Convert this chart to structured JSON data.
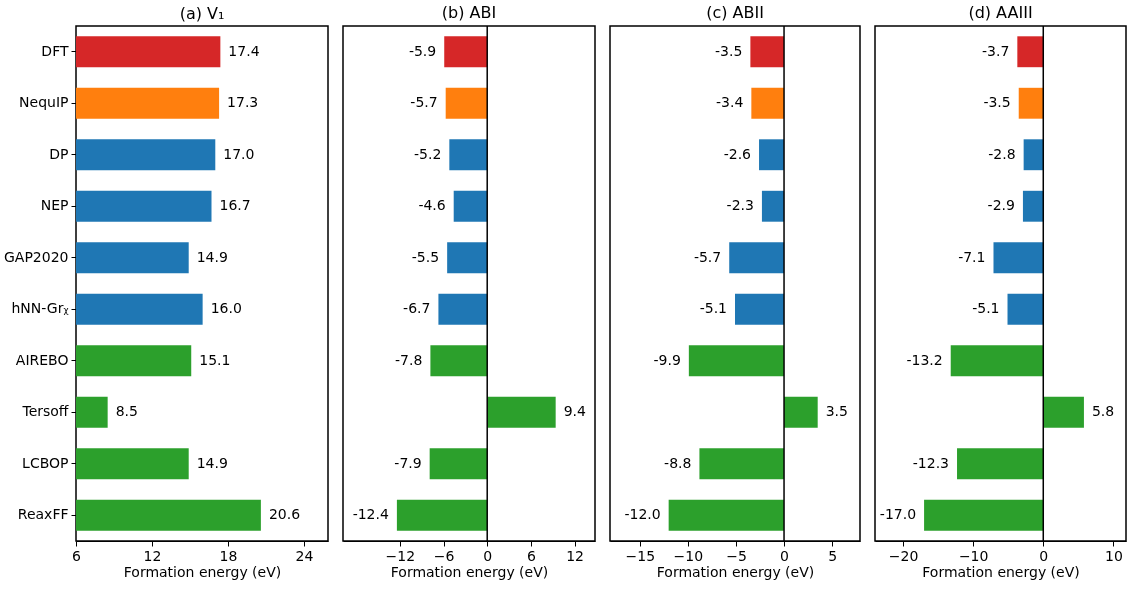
{
  "chart_data": [
    {
      "type": "bar",
      "orientation": "horizontal",
      "title": "(a) V₁",
      "xlabel": "Formation energy (eV)",
      "categories": [
        "DFT",
        "NequIP",
        "DP",
        "NEP",
        "GAP2020",
        "hNN-Grᵪ",
        "AIREBO",
        "Tersoff",
        "LCBOP",
        "ReaxFF"
      ],
      "values": [
        17.4,
        17.3,
        17.0,
        16.7,
        14.9,
        16.0,
        15.1,
        8.5,
        14.9,
        20.6
      ],
      "value_labels": [
        "17.4",
        "17.3",
        "17.0",
        "16.7",
        "14.9",
        "16.0",
        "15.1",
        "8.5",
        "14.9",
        "20.6"
      ],
      "colors": [
        "#d62728",
        "#ff7f0e",
        "#1f77b4",
        "#1f77b4",
        "#1f77b4",
        "#1f77b4",
        "#2ca02c",
        "#2ca02c",
        "#2ca02c",
        "#2ca02c"
      ],
      "xlim": [
        6,
        25.9
      ],
      "xticks": [
        6,
        12,
        18,
        24
      ],
      "grid": false
    },
    {
      "type": "bar",
      "orientation": "horizontal",
      "title": "(b) ABI",
      "xlabel": "Formation energy (eV)",
      "categories": [
        "DFT",
        "NequIP",
        "DP",
        "NEP",
        "GAP2020",
        "hNN-Grᵪ",
        "AIREBO",
        "Tersoff",
        "LCBOP",
        "ReaxFF"
      ],
      "values": [
        -5.9,
        -5.7,
        -5.2,
        -4.6,
        -5.5,
        -6.7,
        -7.8,
        9.4,
        -7.9,
        -12.4
      ],
      "value_labels": [
        "-5.9",
        "-5.7",
        "-5.2",
        "-4.6",
        "-5.5",
        "-6.7",
        "-7.8",
        "9.4",
        "-7.9",
        "-12.4"
      ],
      "colors": [
        "#d62728",
        "#ff7f0e",
        "#1f77b4",
        "#1f77b4",
        "#1f77b4",
        "#1f77b4",
        "#2ca02c",
        "#2ca02c",
        "#2ca02c",
        "#2ca02c"
      ],
      "xlim": [
        -19.8,
        14.8
      ],
      "xticks": [
        {
          "value": -12,
          "label": "−12"
        },
        {
          "value": -6,
          "label": "−6"
        },
        0,
        6,
        12
      ],
      "ref_lines": [
        {
          "axis": "x",
          "value": 0,
          "color": "#000000"
        }
      ],
      "tick_labels": "x",
      "grid": false
    },
    {
      "type": "bar",
      "orientation": "horizontal",
      "title": "(c) ABII",
      "xlabel": "Formation energy (eV)",
      "categories": [
        "DFT",
        "NequIP",
        "DP",
        "NEP",
        "GAP2020",
        "hNN-Grᵪ",
        "AIREBO",
        "Tersoff",
        "LCBOP",
        "ReaxFF"
      ],
      "values": [
        -3.5,
        -3.4,
        -2.6,
        -2.3,
        -5.7,
        -5.1,
        -9.9,
        3.5,
        -8.8,
        -12.0
      ],
      "value_labels": [
        "-3.5",
        "-3.4",
        "-2.6",
        "-2.3",
        "-5.7",
        "-5.1",
        "-9.9",
        "3.5",
        "-8.8",
        "-12.0"
      ],
      "colors": [
        "#d62728",
        "#ff7f0e",
        "#1f77b4",
        "#1f77b4",
        "#1f77b4",
        "#1f77b4",
        "#2ca02c",
        "#2ca02c",
        "#2ca02c",
        "#2ca02c"
      ],
      "xlim": [
        -18.1,
        7.9
      ],
      "xticks": [
        {
          "value": -15,
          "label": "−15"
        },
        {
          "value": -10,
          "label": "−10"
        },
        {
          "value": -5,
          "label": "−5"
        },
        0,
        5
      ],
      "ref_lines": [
        {
          "axis": "x",
          "value": 0,
          "color": "#000000"
        }
      ],
      "tick_labels": "x",
      "grid": false
    },
    {
      "type": "bar",
      "orientation": "horizontal",
      "title": "(d) AAIII",
      "xlabel": "Formation energy (eV)",
      "categories": [
        "DFT",
        "NequIP",
        "DP",
        "NEP",
        "GAP2020",
        "hNN-Grᵪ",
        "AIREBO",
        "Tersoff",
        "LCBOP",
        "ReaxFF"
      ],
      "values": [
        -3.7,
        -3.5,
        -2.8,
        -2.9,
        -7.1,
        -5.1,
        -13.2,
        5.8,
        -12.3,
        -17.0
      ],
      "value_labels": [
        "-3.7",
        "-3.5",
        "-2.8",
        "-2.9",
        "-7.1",
        "-5.1",
        "-13.2",
        "5.8",
        "-12.3",
        "-17.0"
      ],
      "colors": [
        "#d62728",
        "#ff7f0e",
        "#1f77b4",
        "#1f77b4",
        "#1f77b4",
        "#1f77b4",
        "#2ca02c",
        "#2ca02c",
        "#2ca02c",
        "#2ca02c"
      ],
      "xlim": [
        -24.0,
        11.8
      ],
      "xticks": [
        {
          "value": -20,
          "label": "−20"
        },
        {
          "value": -10,
          "label": "−10"
        },
        0,
        10
      ],
      "ref_lines": [
        {
          "axis": "x",
          "value": 0,
          "color": "#000000"
        }
      ],
      "tick_labels": "x",
      "grid": false
    }
  ]
}
